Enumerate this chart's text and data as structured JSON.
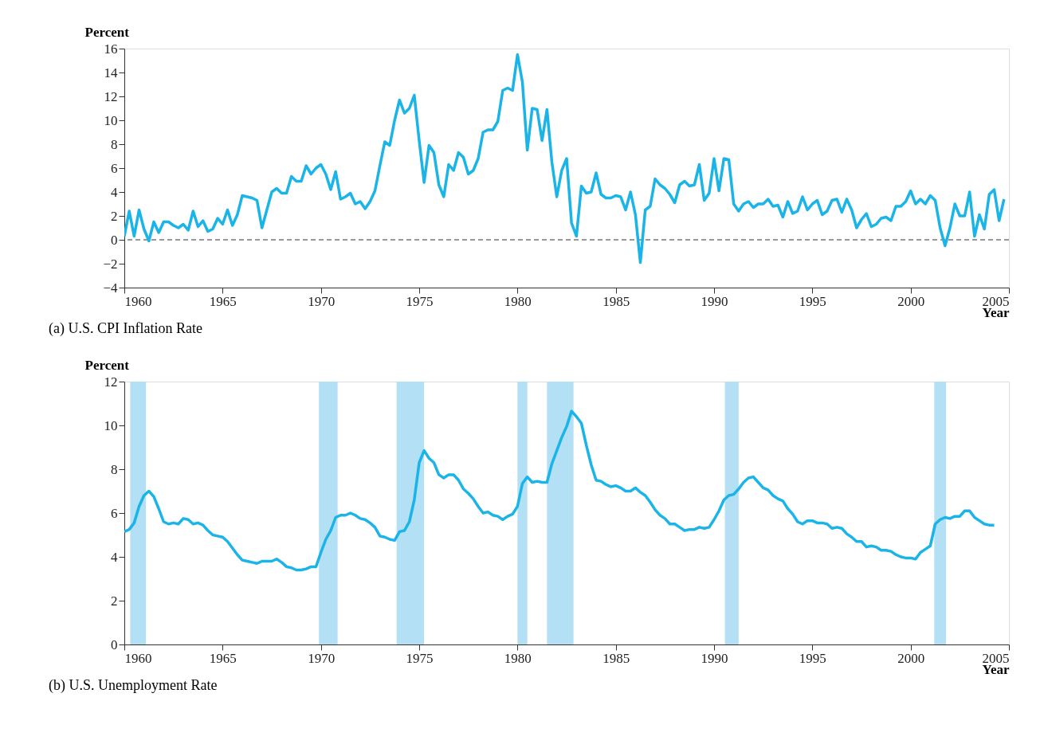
{
  "chart_data": [
    {
      "type": "line",
      "title": "(a) U.S. CPI Inflation Rate",
      "xlabel": "Year",
      "ylabel": "Percent",
      "x": [
        1960.0,
        1960.25,
        1960.5,
        1960.75,
        1961.0,
        1961.25,
        1961.5,
        1961.75,
        1962.0,
        1962.25,
        1962.5,
        1962.75,
        1963.0,
        1963.25,
        1963.5,
        1963.75,
        1964.0,
        1964.25,
        1964.5,
        1964.75,
        1965.0,
        1965.25,
        1965.5,
        1965.75,
        1966.0,
        1966.5,
        1966.75,
        1967.0,
        1967.25,
        1967.5,
        1967.75,
        1968.0,
        1968.25,
        1968.5,
        1968.75,
        1969.0,
        1969.25,
        1969.5,
        1969.75,
        1970.0,
        1970.25,
        1970.5,
        1970.75,
        1971.0,
        1971.25,
        1971.5,
        1971.75,
        1972.0,
        1972.25,
        1972.5,
        1972.75,
        1973.0,
        1973.25,
        1973.5,
        1973.75,
        1974.0,
        1974.25,
        1974.5,
        1974.75,
        1975.0,
        1975.25,
        1975.5,
        1975.75,
        1976.0,
        1976.25,
        1976.5,
        1976.75,
        1977.0,
        1977.25,
        1977.5,
        1977.75,
        1978.0,
        1978.25,
        1978.5,
        1978.75,
        1979.0,
        1979.25,
        1979.5,
        1979.75,
        1980.0,
        1980.25,
        1980.5,
        1980.75,
        1981.0,
        1981.25,
        1981.5,
        1981.75,
        1982.0,
        1982.25,
        1982.5,
        1982.75,
        1983.0,
        1983.25,
        1983.5,
        1983.75,
        1984.0,
        1984.25,
        1984.5,
        1984.75,
        1985.0,
        1985.25,
        1985.5,
        1985.75,
        1986.0,
        1986.25,
        1986.5,
        1986.75,
        1987.0,
        1987.25,
        1987.5,
        1987.75,
        1988.0,
        1988.25,
        1988.5,
        1988.75,
        1989.0,
        1989.25,
        1989.5,
        1989.75,
        1990.0,
        1990.25,
        1990.5,
        1990.75,
        1991.0,
        1991.25,
        1991.5,
        1991.75,
        1992.0,
        1992.25,
        1992.5,
        1992.75,
        1993.0,
        1993.25,
        1993.5,
        1993.75,
        1994.0,
        1994.25,
        1994.5,
        1994.75,
        1995.0,
        1995.25,
        1995.5,
        1995.75,
        1996.0,
        1996.25,
        1996.5,
        1996.75,
        1997.0,
        1997.25,
        1997.5,
        1997.75,
        1998.0,
        1998.25,
        1998.5,
        1998.75,
        1999.0,
        1999.25,
        1999.5,
        1999.75,
        2000.0,
        2000.25,
        2000.5,
        2000.75,
        2001.0,
        2001.25,
        2001.5,
        2001.75,
        2002.0,
        2002.25,
        2002.5,
        2002.75,
        2003.0,
        2003.25,
        2003.5,
        2003.75,
        2004.0,
        2004.25,
        2004.5,
        2004.75
      ],
      "series": [
        {
          "color": "#1ab4e8",
          "values": [
            0.3,
            2.4,
            0.3,
            2.5,
            0.9,
            -0.1,
            1.5,
            0.6,
            1.5,
            1.5,
            1.2,
            1.0,
            1.3,
            0.8,
            2.4,
            1.1,
            1.6,
            0.7,
            0.9,
            1.8,
            1.3,
            2.5,
            1.2,
            2.1,
            3.7,
            3.5,
            3.3,
            1.0,
            2.5,
            4.0,
            4.3,
            3.9,
            3.9,
            5.3,
            4.9,
            4.9,
            6.2,
            5.5,
            6.0,
            6.3,
            5.5,
            4.2,
            5.7,
            3.4,
            3.6,
            3.9,
            3.0,
            3.2,
            2.6,
            3.2,
            4.1,
            6.2,
            8.2,
            7.9,
            10.0,
            11.7,
            10.6,
            11.0,
            12.1,
            8.3,
            4.8,
            7.9,
            7.3,
            4.6,
            3.6,
            6.3,
            5.8,
            7.3,
            6.9,
            5.5,
            5.8,
            6.8,
            9.0,
            9.2,
            9.2,
            9.9,
            12.5,
            12.7,
            12.5,
            15.5,
            13.2,
            7.5,
            11.0,
            10.9,
            8.3,
            10.9,
            6.5,
            3.6,
            5.8,
            6.8,
            1.4,
            0.3,
            4.5,
            3.9,
            4.0,
            5.6,
            3.8,
            3.5,
            3.5,
            3.7,
            3.6,
            2.5,
            4.0,
            2.1,
            -1.9,
            2.5,
            2.8,
            5.1,
            4.6,
            4.3,
            3.8,
            3.1,
            4.6,
            4.9,
            4.5,
            4.6,
            6.3,
            3.3,
            3.9,
            6.8,
            4.1,
            6.8,
            6.7,
            3.0,
            2.4,
            3.0,
            3.2,
            2.7,
            3.0,
            3.0,
            3.4,
            2.8,
            2.9,
            1.9,
            3.2,
            2.2,
            2.4,
            3.6,
            2.5,
            3.0,
            3.3,
            2.1,
            2.4,
            3.3,
            3.4,
            2.3,
            3.4,
            2.5,
            1.0,
            1.7,
            2.2,
            1.1,
            1.3,
            1.8,
            1.9,
            1.6,
            2.8,
            2.8,
            3.2,
            4.1,
            3.0,
            3.4,
            3.0,
            3.7,
            3.3,
            1.0,
            -0.5,
            1.0,
            3.0,
            2.0,
            2.0,
            4.0,
            0.3,
            2.1,
            0.9,
            3.8,
            4.2,
            1.6,
            3.4
          ]
        }
      ],
      "xlim": [
        1960,
        2005
      ],
      "xticks": [
        1960,
        1965,
        1970,
        1975,
        1980,
        1985,
        1990,
        1995,
        2000,
        2005
      ],
      "ylim": [
        -4,
        16
      ],
      "yticks": [
        -4,
        -2,
        0,
        2,
        4,
        6,
        8,
        10,
        12,
        14,
        16
      ],
      "ref_lines": [
        {
          "axis": "y",
          "value": 0,
          "color": "#333333",
          "line_style": "dashed"
        }
      ]
    },
    {
      "type": "line",
      "title": "(b) U.S. Unemployment Rate",
      "xlabel": "Year",
      "ylabel": "Percent",
      "x": [
        1960.0,
        1960.25,
        1960.5,
        1960.75,
        1961.0,
        1961.25,
        1961.5,
        1961.75,
        1962.0,
        1962.25,
        1962.5,
        1962.75,
        1963.0,
        1963.25,
        1963.5,
        1963.75,
        1964.0,
        1964.25,
        1964.5,
        1964.75,
        1965.0,
        1965.25,
        1965.5,
        1965.75,
        1966.0,
        1966.25,
        1966.5,
        1966.75,
        1967.0,
        1967.25,
        1967.5,
        1967.75,
        1968.0,
        1968.25,
        1968.5,
        1968.75,
        1969.0,
        1969.25,
        1969.5,
        1969.75,
        1970.0,
        1970.25,
        1970.5,
        1970.75,
        1971.0,
        1971.25,
        1971.5,
        1971.75,
        1972.0,
        1972.25,
        1972.5,
        1972.75,
        1973.0,
        1973.25,
        1973.5,
        1973.75,
        1974.0,
        1974.25,
        1974.5,
        1974.75,
        1975.0,
        1975.25,
        1975.5,
        1975.75,
        1976.0,
        1976.25,
        1976.5,
        1976.75,
        1977.0,
        1977.25,
        1977.5,
        1977.75,
        1978.0,
        1978.25,
        1978.5,
        1978.75,
        1979.0,
        1979.25,
        1979.5,
        1979.75,
        1980.0,
        1980.25,
        1980.5,
        1980.75,
        1981.0,
        1981.25,
        1981.5,
        1981.75,
        1982.0,
        1982.25,
        1982.5,
        1982.75,
        1983.0,
        1983.25,
        1983.5,
        1983.75,
        1984.0,
        1984.25,
        1984.5,
        1984.75,
        1985.0,
        1985.25,
        1985.5,
        1985.75,
        1986.0,
        1986.25,
        1986.5,
        1986.75,
        1987.0,
        1987.25,
        1987.5,
        1987.75,
        1988.0,
        1988.25,
        1988.5,
        1988.75,
        1989.0,
        1989.25,
        1989.5,
        1989.75,
        1990.0,
        1990.25,
        1990.5,
        1990.75,
        1991.0,
        1991.25,
        1991.5,
        1991.75,
        1992.0,
        1992.25,
        1992.5,
        1992.75,
        1993.0,
        1993.25,
        1993.5,
        1993.75,
        1994.0,
        1994.25,
        1994.5,
        1994.75,
        1995.0,
        1995.25,
        1995.5,
        1995.75,
        1996.0,
        1996.25,
        1996.5,
        1996.75,
        1997.0,
        1997.25,
        1997.5,
        1997.75,
        1998.0,
        1998.25,
        1998.5,
        1998.75,
        1999.0,
        1999.25,
        1999.5,
        1999.75,
        2000.0,
        2000.25,
        2000.5,
        2000.75,
        2001.0,
        2001.25,
        2001.5,
        2001.75,
        2002.0,
        2002.25,
        2002.5,
        2002.75,
        2003.0,
        2003.25,
        2003.5,
        2003.75,
        2004.0,
        2004.25
      ],
      "series": [
        {
          "color": "#1ab4e8",
          "values": [
            5.15,
            5.25,
            5.55,
            6.3,
            6.8,
            7.0,
            6.75,
            6.2,
            5.6,
            5.5,
            5.55,
            5.5,
            5.75,
            5.7,
            5.5,
            5.55,
            5.45,
            5.2,
            5.0,
            4.95,
            4.9,
            4.7,
            4.4,
            4.1,
            3.85,
            3.8,
            3.75,
            3.7,
            3.8,
            3.8,
            3.8,
            3.9,
            3.75,
            3.55,
            3.5,
            3.4,
            3.4,
            3.45,
            3.55,
            3.55,
            4.2,
            4.8,
            5.2,
            5.8,
            5.9,
            5.9,
            6.0,
            5.9,
            5.75,
            5.7,
            5.55,
            5.35,
            4.95,
            4.9,
            4.8,
            4.75,
            5.15,
            5.2,
            5.6,
            6.6,
            8.3,
            8.85,
            8.5,
            8.3,
            7.75,
            7.6,
            7.75,
            7.75,
            7.5,
            7.1,
            6.9,
            6.65,
            6.3,
            6.0,
            6.05,
            5.9,
            5.85,
            5.7,
            5.85,
            5.95,
            6.3,
            7.35,
            7.65,
            7.4,
            7.45,
            7.4,
            7.4,
            8.25,
            8.85,
            9.45,
            9.95,
            10.65,
            10.4,
            10.1,
            9.1,
            8.2,
            7.5,
            7.45,
            7.3,
            7.2,
            7.25,
            7.15,
            7.0,
            7.0,
            7.15,
            6.95,
            6.8,
            6.5,
            6.15,
            5.9,
            5.75,
            5.5,
            5.5,
            5.35,
            5.2,
            5.25,
            5.25,
            5.35,
            5.3,
            5.35,
            5.7,
            6.1,
            6.6,
            6.8,
            6.85,
            7.1,
            7.4,
            7.6,
            7.65,
            7.4,
            7.15,
            7.05,
            6.8,
            6.65,
            6.55,
            6.2,
            5.95,
            5.6,
            5.5,
            5.65,
            5.65,
            5.55,
            5.55,
            5.5,
            5.3,
            5.35,
            5.3,
            5.05,
            4.9,
            4.7,
            4.7,
            4.45,
            4.5,
            4.45,
            4.3,
            4.3,
            4.25,
            4.1,
            4.0,
            3.95,
            3.95,
            3.9,
            4.2,
            4.35,
            4.5,
            5.5,
            5.7,
            5.8,
            5.75,
            5.85,
            5.85,
            6.1,
            6.1,
            5.8,
            5.65,
            5.5,
            5.45,
            5.45
          ]
        }
      ],
      "xlim": [
        1960,
        2005
      ],
      "xticks": [
        1960,
        1965,
        1970,
        1975,
        1980,
        1985,
        1990,
        1995,
        2000,
        2005
      ],
      "ylim": [
        0,
        12
      ],
      "yticks": [
        0,
        2,
        4,
        6,
        8,
        10,
        12
      ],
      "bands": [
        {
          "axis": "x",
          "from": 1960.3,
          "to": 1961.1,
          "color": "#b3e0f5"
        },
        {
          "axis": "x",
          "from": 1969.9,
          "to": 1970.85,
          "color": "#b3e0f5"
        },
        {
          "axis": "x",
          "from": 1973.85,
          "to": 1975.25,
          "color": "#b3e0f5"
        },
        {
          "axis": "x",
          "from": 1980.0,
          "to": 1980.5,
          "color": "#b3e0f5"
        },
        {
          "axis": "x",
          "from": 1981.5,
          "to": 1982.85,
          "color": "#b3e0f5"
        },
        {
          "axis": "x",
          "from": 1990.55,
          "to": 1991.25,
          "color": "#b3e0f5"
        },
        {
          "axis": "x",
          "from": 2001.2,
          "to": 2001.8,
          "color": "#b3e0f5"
        }
      ]
    }
  ]
}
